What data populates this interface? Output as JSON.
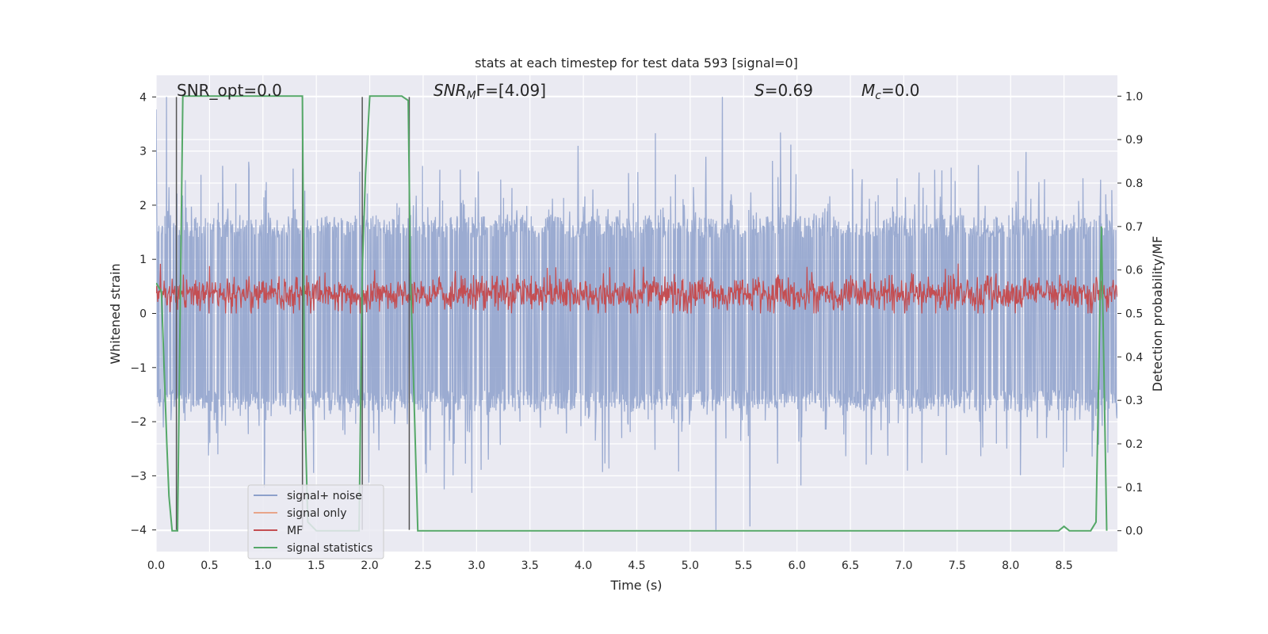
{
  "chart_data": {
    "type": "line",
    "title": "stats at each timestep for test data 593 [signal=0]",
    "xlabel": "Time (s)",
    "ylabel": "Whitened strain",
    "ylabel_right": "Detection probability/MF",
    "xlim": [
      0,
      9.0
    ],
    "ylim": [
      -4.4,
      4.4
    ],
    "ylim_right": [
      -0.048,
      1.048
    ],
    "xticks": [
      "0.0",
      "0.5",
      "1.0",
      "1.5",
      "2.0",
      "2.5",
      "3.0",
      "3.5",
      "4.0",
      "4.5",
      "5.0",
      "5.5",
      "6.0",
      "6.5",
      "7.0",
      "7.5",
      "8.0",
      "8.5"
    ],
    "yticks_left": [
      "4",
      "3",
      "2",
      "1",
      "0",
      "−1",
      "−2",
      "−3",
      "−4"
    ],
    "yticks_right": [
      "1.0",
      "0.9",
      "0.8",
      "0.7",
      "0.6",
      "0.5",
      "0.4",
      "0.3",
      "0.2",
      "0.1",
      "0.0"
    ],
    "grid": true,
    "legend_placement": "lower-left",
    "annotations": {
      "snr_opt": "SNR_opt=0.0",
      "snr_mf_prefix": "SNR",
      "snr_mf_sub": "M",
      "snr_mf_rest": "F=[4.09]",
      "s_symbol": "S",
      "s_value": "=0.69",
      "mc_symbol": "M",
      "mc_sub": "c",
      "mc_value": "=0.0"
    },
    "series": [
      {
        "name": "signal+ noise",
        "color": "#8da0cb",
        "envelope": "noise band approx. ±1.6 to ±3.8 whitened strain"
      },
      {
        "name": "signal only",
        "color": "#e8a58a",
        "values": []
      },
      {
        "name": "MF",
        "color": "#c44e52",
        "range": [
          0.0,
          0.95
        ]
      },
      {
        "name": "signal statistics",
        "color": "#55a868",
        "x": [
          0.0,
          0.05,
          0.1,
          0.12,
          0.15,
          0.2,
          0.25,
          0.3,
          1.37,
          1.39,
          1.42,
          1.5,
          1.9,
          1.93,
          1.96,
          2.0,
          2.3,
          2.36,
          2.38,
          2.45,
          8.45,
          8.5,
          8.55,
          8.75,
          8.8,
          8.85,
          8.9
        ],
        "y": [
          0.57,
          0.55,
          0.2,
          0.08,
          0.0,
          0.0,
          1.0,
          1.0,
          1.0,
          0.3,
          0.02,
          0.0,
          0.0,
          0.6,
          0.82,
          1.0,
          1.0,
          0.99,
          0.6,
          0.0,
          0.0,
          0.01,
          0.0,
          0.0,
          0.02,
          0.7,
          0.0
        ]
      }
    ],
    "vertical_markers": [
      0.19,
      1.37,
      1.93,
      2.37
    ]
  }
}
